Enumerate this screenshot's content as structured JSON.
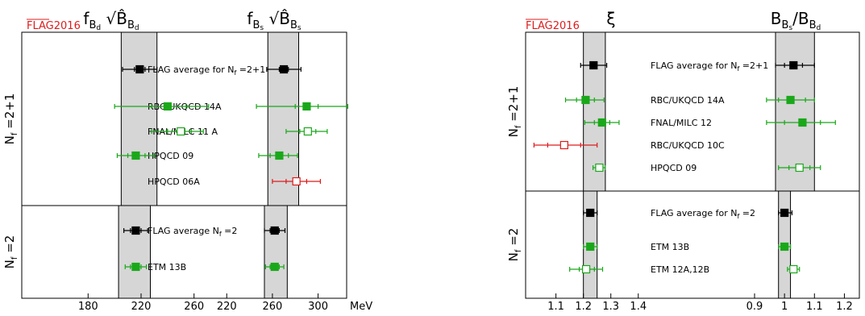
{
  "colors": {
    "black": "#000000",
    "green": "#1aa81a",
    "red": "#dd1c1c",
    "band": "#d6d6d6",
    "flag_red": "#dd1c1c"
  },
  "chart_data": [
    {
      "type": "scatter",
      "subtype": "error-bar comparison (FLAG)",
      "logo": "FLAG2016",
      "panels": [
        {
          "title_main": "f",
          "title_sub": "B",
          "title_subsub": "d",
          "title_sqrt": "B̂",
          "title_sqrt_sub": "B",
          "title_sqrt_subsub": "d",
          "xticks": [
            180,
            220,
            260
          ],
          "xlim": [
            150,
            290
          ],
          "bands": [
            {
              "group": "2+1",
              "lo": 205,
              "hi": 232
            },
            {
              "group": "2",
              "lo": 203,
              "hi": 227
            }
          ]
        },
        {
          "title_main": "f",
          "title_sub": "B",
          "title_subsub": "s",
          "title_sqrt": "B̂",
          "title_sqrt_sub": "B",
          "title_sqrt_subsub": "s",
          "xticks": [
            220,
            260,
            300
          ],
          "xlim": [
            205,
            325
          ],
          "unit": "MeV",
          "bands": [
            {
              "group": "2+1",
              "lo": 256,
              "hi": 283
            },
            {
              "group": "2",
              "lo": 253,
              "hi": 273
            }
          ]
        }
      ],
      "groups": [
        {
          "label_main": "N",
          "label_sub": "f",
          "label_rest": " =2+1",
          "rows": 5
        },
        {
          "label_main": "N",
          "label_sub": "f",
          "label_rest": " =2",
          "rows": 2
        }
      ],
      "rows": [
        {
          "group": "2+1",
          "label": "FLAG average for N",
          "label_sub": "f",
          "label_tail": " =2+1",
          "color": "black",
          "fill": true,
          "p1": {
            "v": 219,
            "lo": 206,
            "hi": 232,
            "lo_in": 215,
            "hi_in": 223
          },
          "p2": {
            "v": 270,
            "lo": 255,
            "hi": 285,
            "lo_in": 266,
            "hi_in": 274
          }
        },
        {
          "group": "2+1",
          "label": "RBC/UKQCD 14A",
          "color": "green",
          "fill": true,
          "p1": {
            "v": 240,
            "lo": 200,
            "hi": 271,
            "lo_in": 228,
            "hi_in": 254
          },
          "p2": {
            "v": 290,
            "lo": 246,
            "hi": 326,
            "lo_in": 280,
            "hi_in": 300
          }
        },
        {
          "group": "2+1",
          "label": "FNAL/MILC 11 A",
          "color": "green",
          "fill": false,
          "p1": {
            "v": 250,
            "lo": 228,
            "hi": 267,
            "lo_in": 240,
            "hi_in": 258
          },
          "p2": {
            "v": 291,
            "lo": 272,
            "hi": 308,
            "lo_in": 284,
            "hi_in": 298
          }
        },
        {
          "group": "2+1",
          "label": "HPQCD 09",
          "color": "green",
          "fill": true,
          "p1": {
            "v": 216,
            "lo": 202,
            "hi": 230,
            "lo_in": 210,
            "hi_in": 223
          },
          "p2": {
            "v": 266,
            "lo": 248,
            "hi": 282,
            "lo_in": 258,
            "hi_in": 274
          }
        },
        {
          "group": "2+1",
          "label": "HPQCD 06A",
          "color": "red",
          "fill": false,
          "p1": null,
          "p2": {
            "v": 281,
            "lo": 260,
            "hi": 302,
            "lo_in": 272,
            "hi_in": 290
          }
        },
        {
          "group": "2",
          "label": "FLAG average N",
          "label_sub": "f",
          "label_tail": " =2",
          "color": "black",
          "fill": true,
          "p1": {
            "v": 216,
            "lo": 207,
            "hi": 225,
            "lo_in": 212,
            "hi_in": 220
          },
          "p2": {
            "v": 262,
            "lo": 253,
            "hi": 271,
            "lo_in": 258,
            "hi_in": 266
          }
        },
        {
          "group": "2",
          "label": "ETM 13B",
          "color": "green",
          "fill": true,
          "p1": {
            "v": 216,
            "lo": 208,
            "hi": 224,
            "lo_in": 212,
            "hi_in": 220
          },
          "p2": {
            "v": 262,
            "lo": 254,
            "hi": 270,
            "lo_in": 258,
            "hi_in": 266
          }
        }
      ]
    },
    {
      "type": "scatter",
      "subtype": "error-bar comparison (FLAG)",
      "logo": "FLAG2016",
      "panels": [
        {
          "title_main": "ξ",
          "xticks": [
            1.1,
            1.2,
            1.3,
            1.4
          ],
          "xlim": [
            1.01,
            1.48
          ],
          "bands": [
            {
              "group": "2+1",
              "lo": 1.2,
              "hi": 1.28
            },
            {
              "group": "2",
              "lo": 1.2,
              "hi": 1.25
            }
          ]
        },
        {
          "title_main": "B",
          "title_sub": "B",
          "title_subsub": "s",
          "title_sep": "/",
          "title2_main": "B",
          "title2_sub": "B",
          "title2_subsub": "d",
          "xticks": [
            0.9,
            1.0,
            1.1,
            1.2
          ],
          "xlim": [
            0.83,
            1.25
          ],
          "bands": [
            {
              "group": "2+1",
              "lo": 0.97,
              "hi": 1.1
            },
            {
              "group": "2",
              "lo": 0.98,
              "hi": 1.02
            }
          ]
        }
      ],
      "groups": [
        {
          "label_main": "N",
          "label_sub": "f",
          "label_rest": " =2+1",
          "rows": 5
        },
        {
          "label_main": "N",
          "label_sub": "f",
          "label_rest": " =2",
          "rows": 3
        }
      ],
      "rows": [
        {
          "group": "2+1",
          "label": "FLAG average for N",
          "label_sub": "f",
          "label_tail": " =2+1",
          "color": "black",
          "fill": true,
          "p1": {
            "v": 1.237,
            "lo": 1.19,
            "hi": 1.285,
            "lo_in": 1.225,
            "hi_in": 1.249
          },
          "p2": {
            "v": 1.03,
            "lo": 0.97,
            "hi": 1.1,
            "lo_in": 1.0,
            "hi_in": 1.06
          }
        },
        {
          "group": "2+1",
          "label": "RBC/UKQCD 14A",
          "color": "green",
          "fill": true,
          "p1": {
            "v": 1.208,
            "lo": 1.135,
            "hi": 1.275,
            "lo_in": 1.175,
            "hi_in": 1.24
          },
          "p2": {
            "v": 1.02,
            "lo": 0.94,
            "hi": 1.1,
            "lo_in": 0.98,
            "hi_in": 1.07
          }
        },
        {
          "group": "2+1",
          "label": "FNAL/MILC 12",
          "color": "green",
          "fill": true,
          "p1": {
            "v": 1.268,
            "lo": 1.205,
            "hi": 1.33,
            "lo_in": 1.24,
            "hi_in": 1.296
          },
          "p2": {
            "v": 1.06,
            "lo": 0.94,
            "hi": 1.17,
            "lo_in": 1.0,
            "hi_in": 1.12
          }
        },
        {
          "group": "2+1",
          "label": "RBC/UKQCD 10C",
          "color": "red",
          "fill": false,
          "p1": {
            "v": 1.13,
            "lo": 1.02,
            "hi": 1.25,
            "lo_in": 1.07,
            "hi_in": 1.19
          },
          "p2": null
        },
        {
          "group": "2+1",
          "label": "HPQCD 09",
          "color": "green",
          "fill": false,
          "p1": {
            "v": 1.258,
            "lo": 1.235,
            "hi": 1.28,
            "lo_in": 1.248,
            "hi_in": 1.268
          },
          "p2": {
            "v": 1.05,
            "lo": 0.98,
            "hi": 1.12,
            "lo_in": 1.015,
            "hi_in": 1.085
          }
        },
        {
          "group": "2",
          "label": "FLAG average for N",
          "label_sub": "f",
          "label_tail": " =2",
          "color": "black",
          "fill": true,
          "p1": {
            "v": 1.225,
            "lo": 1.2,
            "hi": 1.25,
            "lo_in": 1.215,
            "hi_in": 1.235
          },
          "p2": {
            "v": 1.0,
            "lo": 0.98,
            "hi": 1.025,
            "lo_in": 0.99,
            "hi_in": 1.01
          }
        },
        {
          "group": "2",
          "label": "ETM 13B",
          "color": "green",
          "fill": true,
          "p1": {
            "v": 1.225,
            "lo": 1.2,
            "hi": 1.25,
            "lo_in": 1.213,
            "hi_in": 1.237
          },
          "p2": {
            "v": 1.0,
            "lo": 0.98,
            "hi": 1.02,
            "lo_in": 0.99,
            "hi_in": 1.01
          }
        },
        {
          "group": "2",
          "label": "ETM 12A,12B",
          "color": "green",
          "fill": false,
          "p1": {
            "v": 1.21,
            "lo": 1.15,
            "hi": 1.27,
            "lo_in": 1.185,
            "hi_in": 1.24
          },
          "p2": {
            "v": 1.03,
            "lo": 1.01,
            "hi": 1.05,
            "lo_in": 1.02,
            "hi_in": 1.04
          }
        }
      ]
    }
  ]
}
